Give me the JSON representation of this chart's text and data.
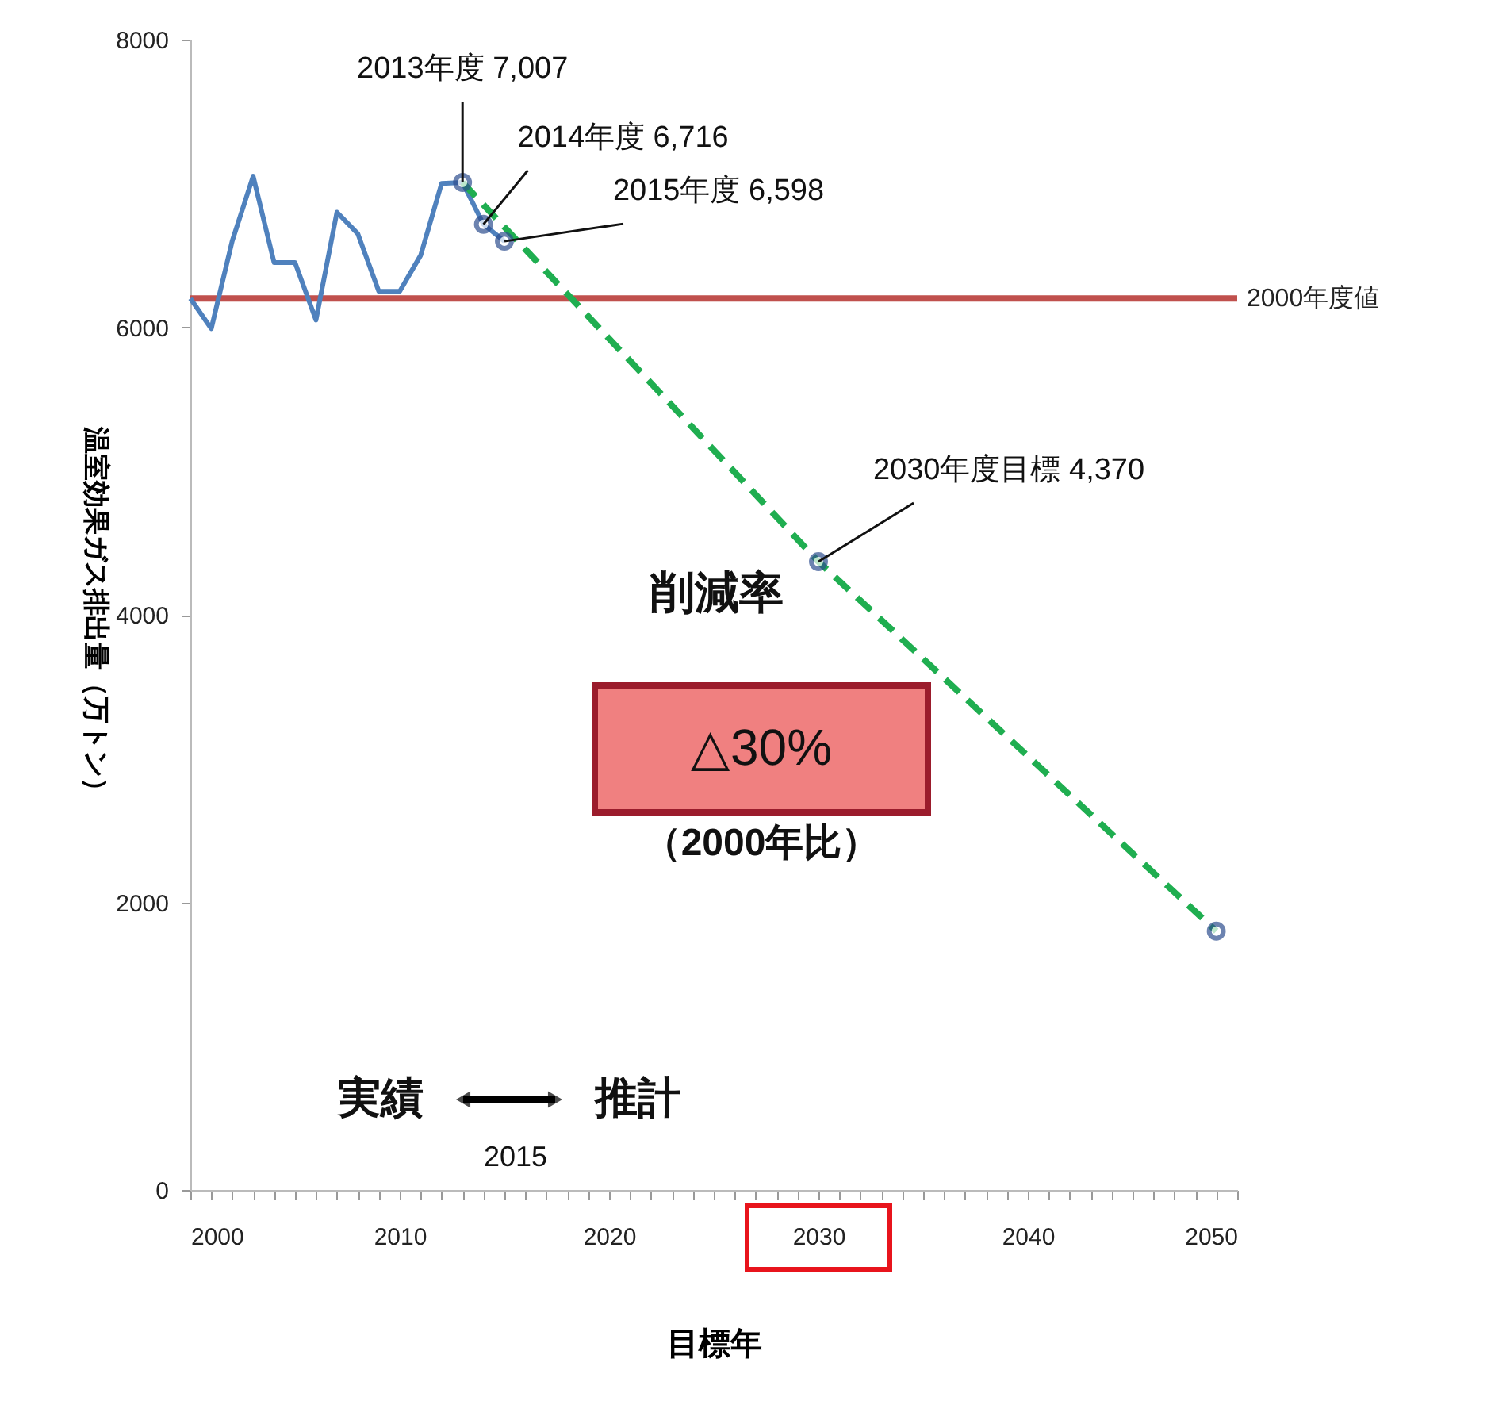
{
  "chart_data": {
    "type": "line",
    "xlabel": "目標年",
    "ylabel": "温室効果ガス排出量（万トン）",
    "xlim": [
      2000,
      2050
    ],
    "ylim": [
      0,
      8000
    ],
    "xticks": [
      2000,
      {
        "value": 2001,
        "label": null
      },
      {
        "value": 2002,
        "label": null
      },
      {
        "value": 2003,
        "label": null
      },
      {
        "value": 2004,
        "label": null
      },
      {
        "value": 2005,
        "label": null
      },
      {
        "value": 2006,
        "label": null
      },
      {
        "value": 2007,
        "label": null
      },
      {
        "value": 2008,
        "label": null
      },
      {
        "value": 2009,
        "label": null
      },
      2010,
      {
        "value": 2011,
        "label": null
      },
      {
        "value": 2012,
        "label": null
      },
      {
        "value": 2013,
        "label": null
      },
      {
        "value": 2014,
        "label": null
      },
      {
        "value": 2015,
        "label": null
      },
      {
        "value": 2016,
        "label": null
      },
      {
        "value": 2017,
        "label": null
      },
      {
        "value": 2018,
        "label": null
      },
      {
        "value": 2019,
        "label": null
      },
      2020,
      {
        "value": 2021,
        "label": null
      },
      {
        "value": 2022,
        "label": null
      },
      {
        "value": 2023,
        "label": null
      },
      {
        "value": 2024,
        "label": null
      },
      {
        "value": 2025,
        "label": null
      },
      {
        "value": 2026,
        "label": null
      },
      {
        "value": 2027,
        "label": null
      },
      {
        "value": 2028,
        "label": null
      },
      {
        "value": 2029,
        "label": null
      },
      2030,
      {
        "value": 2031,
        "label": null
      },
      {
        "value": 2032,
        "label": null
      },
      {
        "value": 2033,
        "label": null
      },
      {
        "value": 2034,
        "label": null
      },
      {
        "value": 2035,
        "label": null
      },
      {
        "value": 2036,
        "label": null
      },
      {
        "value": 2037,
        "label": null
      },
      {
        "value": 2038,
        "label": null
      },
      {
        "value": 2039,
        "label": null
      },
      2040,
      {
        "value": 2041,
        "label": null
      },
      {
        "value": 2042,
        "label": null
      },
      {
        "value": 2043,
        "label": null
      },
      {
        "value": 2044,
        "label": null
      },
      {
        "value": 2045,
        "label": null
      },
      {
        "value": 2046,
        "label": null
      },
      {
        "value": 2047,
        "label": null
      },
      {
        "value": 2048,
        "label": null
      },
      {
        "value": 2049,
        "label": null
      },
      2050
    ],
    "yticks": [
      0,
      2000,
      4000,
      6000,
      8000
    ],
    "grid": false,
    "series": [
      {
        "type": "line",
        "color": "#4f81bd",
        "line_style": "solid",
        "marker": "none",
        "x": [
          2000,
          2001,
          2002,
          2003,
          2004,
          2005,
          2006,
          2007,
          2008,
          2009,
          2010,
          2011,
          2012,
          2013,
          2014,
          2015
        ],
        "values": [
          6200,
          5990,
          6600,
          7050,
          6450,
          6450,
          6050,
          6800,
          6650,
          6250,
          6250,
          6500,
          7000,
          7007,
          6716,
          6598
        ]
      },
      {
        "type": "line",
        "color": "#1fae50",
        "line_style": "dashed",
        "marker": "none",
        "x": [
          2013,
          2030,
          2049
        ],
        "values": [
          7007,
          4370,
          1800
        ]
      },
      {
        "type": "scatter",
        "color": "#2f4f8f",
        "marker": "circle",
        "x": [
          2013,
          2014,
          2015,
          2030,
          2049
        ],
        "values": [
          7007,
          6716,
          6598,
          4370,
          1800
        ]
      }
    ],
    "ref_lines": [
      {
        "axis": "y",
        "value": 6200,
        "label": "2000年度値",
        "color": "#c0504d",
        "line_style": "solid"
      }
    ],
    "annotations": [
      {
        "text": "2013年度  7,007",
        "x": 2013,
        "y": 7007
      },
      {
        "text": "2014年度  6,716",
        "x": 2014,
        "y": 6716
      },
      {
        "text": "2015年度  6,598",
        "x": 2015,
        "y": 6598
      },
      {
        "text": "2030年度目標  4,370",
        "x": 2030,
        "y": 4370
      },
      "削減率",
      "△30%",
      "（2000年比）",
      "実績",
      "推計",
      "2015"
    ]
  }
}
